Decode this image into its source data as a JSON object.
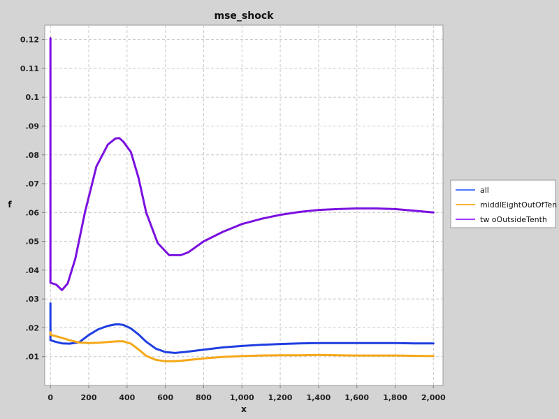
{
  "chart_data": {
    "type": "line",
    "title": "mse_shock",
    "xlabel": "x",
    "ylabel": "f",
    "xlim": [
      -30,
      2050
    ],
    "ylim": [
      0.0,
      0.125
    ],
    "grid": true,
    "legend_position": "right",
    "x_ticks": [
      0,
      200,
      400,
      600,
      800,
      1000,
      1200,
      1400,
      1600,
      1800,
      2000
    ],
    "x_tick_labels": [
      "0",
      "200",
      "400",
      "600",
      "800",
      "1,000",
      "1,200",
      "1,400",
      "1,600",
      "1,800",
      "2,000"
    ],
    "y_ticks": [
      0.01,
      0.02,
      0.03,
      0.04,
      0.05,
      0.06,
      0.07,
      0.08,
      0.09,
      0.1,
      0.11,
      0.12
    ],
    "y_tick_labels": [
      ".01",
      ".02",
      ".03",
      ".04",
      ".05",
      ".06",
      ".07",
      ".08",
      ".09",
      "0.1",
      "0.11",
      "0.12"
    ],
    "series": [
      {
        "name": "all",
        "color": "#1f3fe0",
        "legend_color": "#4d7bff",
        "x": [
          0,
          0,
          0,
          30,
          60,
          100,
          150,
          200,
          250,
          300,
          340,
          360,
          380,
          420,
          460,
          500,
          550,
          600,
          650,
          700,
          800,
          900,
          1000,
          1100,
          1200,
          1300,
          1400,
          1500,
          1600,
          1700,
          1800,
          1900,
          2000
        ],
        "y": [
          0.0285,
          0.0158,
          0.0157,
          0.0151,
          0.0146,
          0.0145,
          0.015,
          0.0175,
          0.0195,
          0.0207,
          0.0212,
          0.0212,
          0.021,
          0.0198,
          0.0177,
          0.0152,
          0.0128,
          0.0116,
          0.0113,
          0.0116,
          0.0124,
          0.0132,
          0.0137,
          0.0141,
          0.0144,
          0.0146,
          0.0147,
          0.0147,
          0.0147,
          0.0147,
          0.0147,
          0.0146,
          0.0146
        ]
      },
      {
        "name": "middlEightOutOfTen",
        "color": "#f5a818",
        "legend_color": "#f5b52e",
        "x": [
          0,
          0,
          0,
          50,
          100,
          150,
          200,
          250,
          300,
          350,
          380,
          420,
          460,
          500,
          550,
          600,
          650,
          700,
          800,
          900,
          1000,
          1100,
          1200,
          1300,
          1400,
          1500,
          1600,
          1700,
          1800,
          1900,
          2000
        ],
        "y": [
          0.0185,
          0.0177,
          0.0176,
          0.0167,
          0.0157,
          0.0149,
          0.0147,
          0.0148,
          0.0151,
          0.0153,
          0.0153,
          0.0145,
          0.0125,
          0.0103,
          0.0089,
          0.0084,
          0.0084,
          0.0087,
          0.0094,
          0.0099,
          0.0102,
          0.0104,
          0.0105,
          0.0105,
          0.0106,
          0.0105,
          0.0104,
          0.0104,
          0.0104,
          0.0103,
          0.0102
        ]
      },
      {
        "name": "two OutsideTenth",
        "legend_label": "tw oOutsideTenth",
        "color": "#7a10e0",
        "legend_color": "#a040ff",
        "x": [
          0,
          0,
          0,
          30,
          60,
          90,
          130,
          180,
          240,
          300,
          340,
          360,
          380,
          420,
          460,
          500,
          560,
          620,
          680,
          720,
          800,
          900,
          1000,
          1100,
          1200,
          1300,
          1400,
          1500,
          1600,
          1700,
          1800,
          1900,
          2000
        ],
        "y": [
          0.1205,
          0.036,
          0.0356,
          0.035,
          0.0331,
          0.0354,
          0.044,
          0.06,
          0.076,
          0.0836,
          0.0857,
          0.0858,
          0.0846,
          0.081,
          0.072,
          0.06,
          0.0494,
          0.0452,
          0.0452,
          0.0462,
          0.05,
          0.0533,
          0.056,
          0.0578,
          0.0592,
          0.0602,
          0.0609,
          0.0612,
          0.0614,
          0.0614,
          0.0612,
          0.0606,
          0.06
        ]
      }
    ]
  }
}
